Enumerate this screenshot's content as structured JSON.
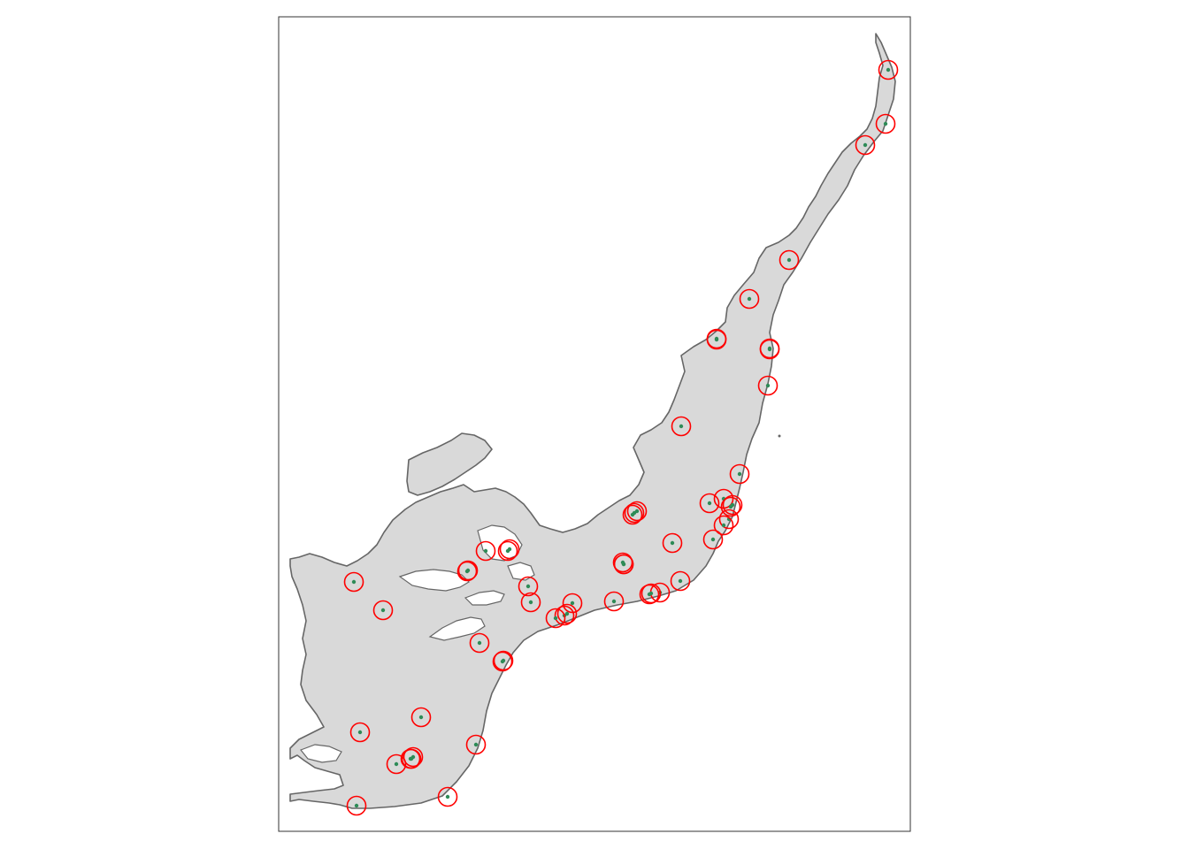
{
  "map": {
    "land_fill": "#d9d9d9",
    "coast_stroke": "#666666",
    "frame_stroke": "#333333",
    "marker_ring_color": "#ff0000",
    "marker_dot_color": "#2e8b57",
    "marker_count": 56
  }
}
